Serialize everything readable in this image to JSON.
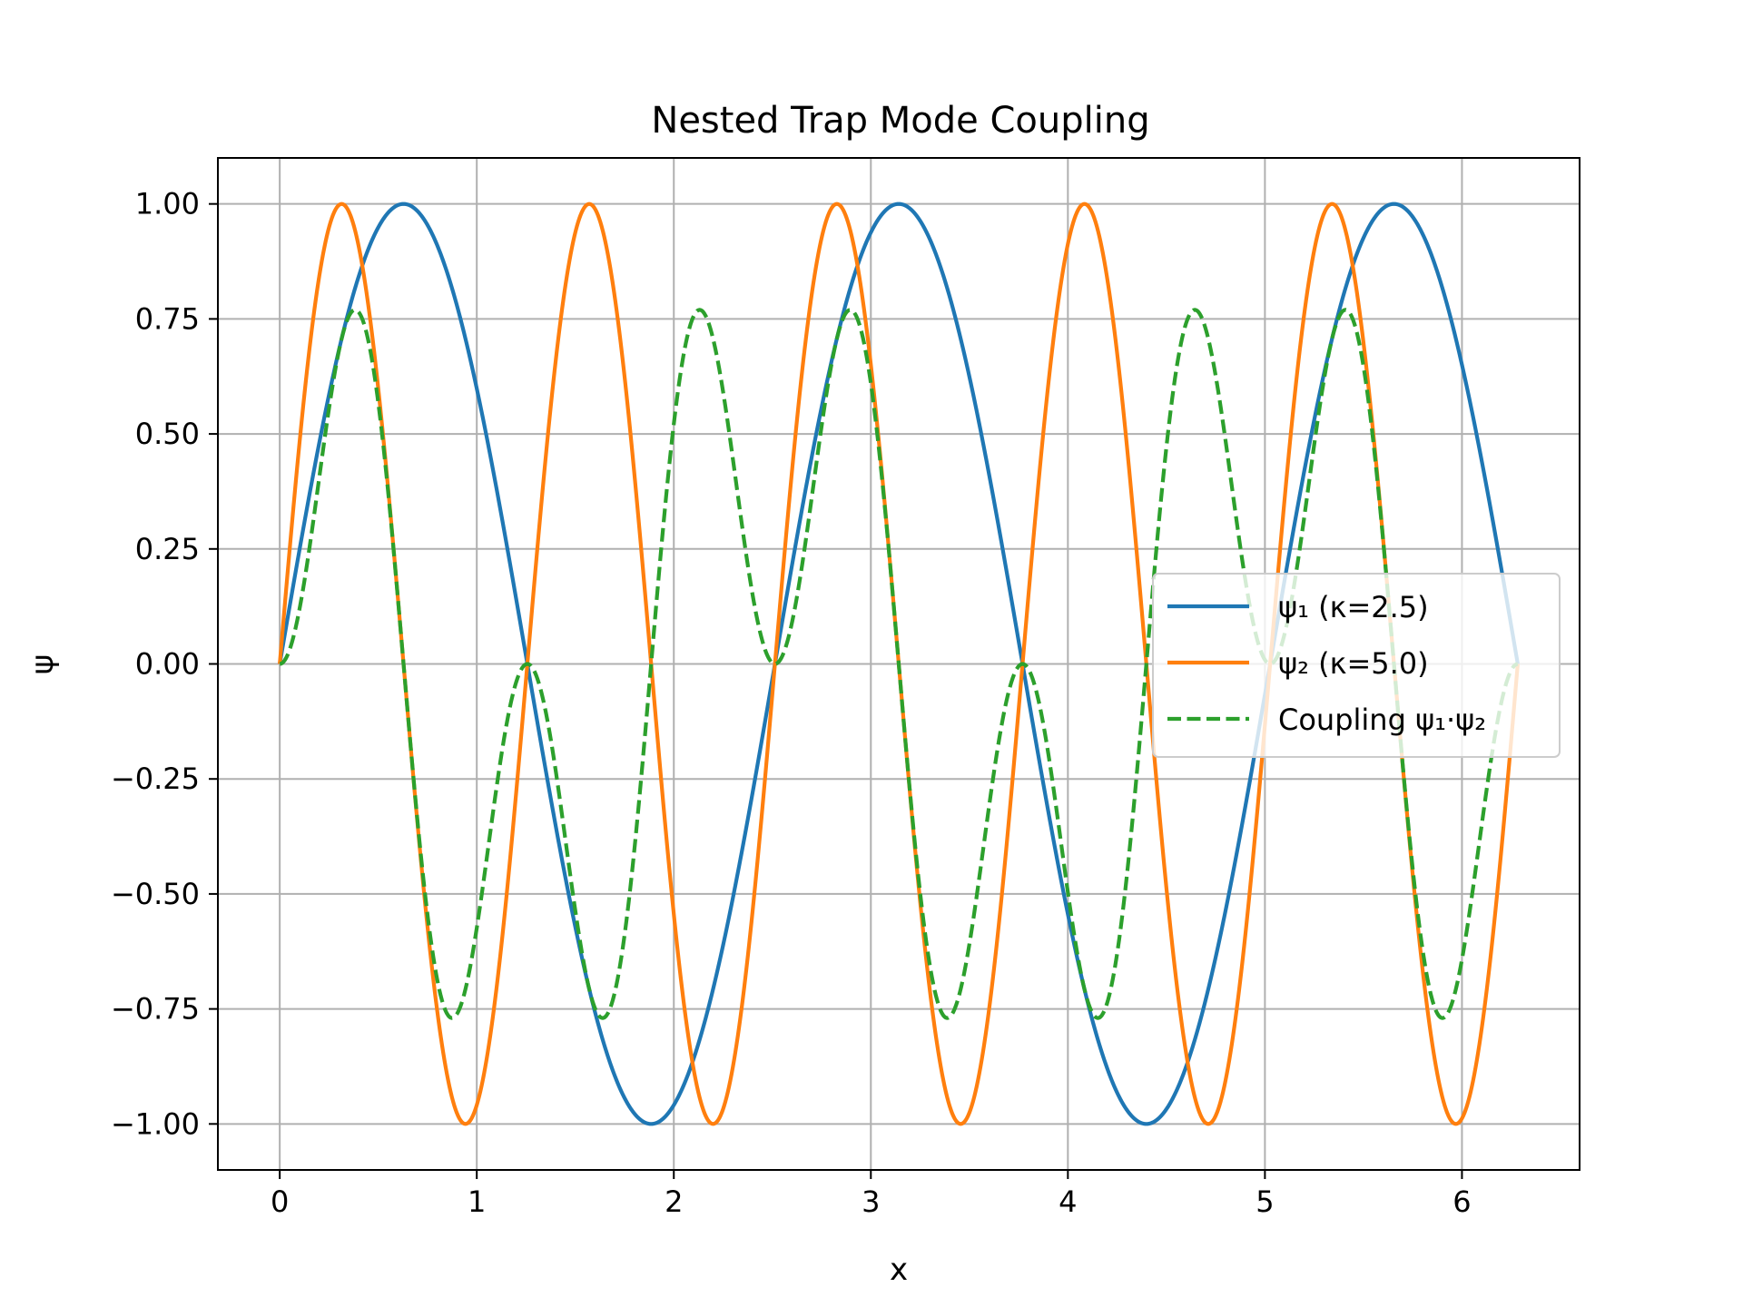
{
  "chart_data": {
    "type": "line",
    "title": "Nested Trap Mode Coupling",
    "xlabel": "x",
    "ylabel": "ψ",
    "xlim": [
      -0.314,
      6.597
    ],
    "ylim": [
      -1.1,
      1.1
    ],
    "xticks": [
      0,
      1,
      2,
      3,
      4,
      5,
      6
    ],
    "xtick_labels": [
      "0",
      "1",
      "2",
      "3",
      "4",
      "5",
      "6"
    ],
    "yticks": [
      1.0,
      0.75,
      0.5,
      0.25,
      0.0,
      -0.25,
      -0.5,
      -0.75,
      -1.0
    ],
    "ytick_labels": [
      "1.00",
      "0.75",
      "0.50",
      "0.25",
      "0.00",
      "−0.25",
      "−0.50",
      "−0.75",
      "−1.00"
    ],
    "grid": true,
    "legend": "center-right",
    "x_domain": [
      0,
      6.2832
    ],
    "series": [
      {
        "name": "ψ₁ (κ=2.5)",
        "formula": "sin(2.5x)",
        "color": "#1f77b4",
        "dash": "solid"
      },
      {
        "name": "ψ₂ (κ=5.0)",
        "formula": "sin(5.0x)",
        "color": "#ff7f0e",
        "dash": "solid"
      },
      {
        "name": "Coupling ψ₁·ψ₂",
        "formula": "sin(2.5x)·sin(5.0x)",
        "color": "#2ca02c",
        "dash": "dashed"
      }
    ]
  }
}
